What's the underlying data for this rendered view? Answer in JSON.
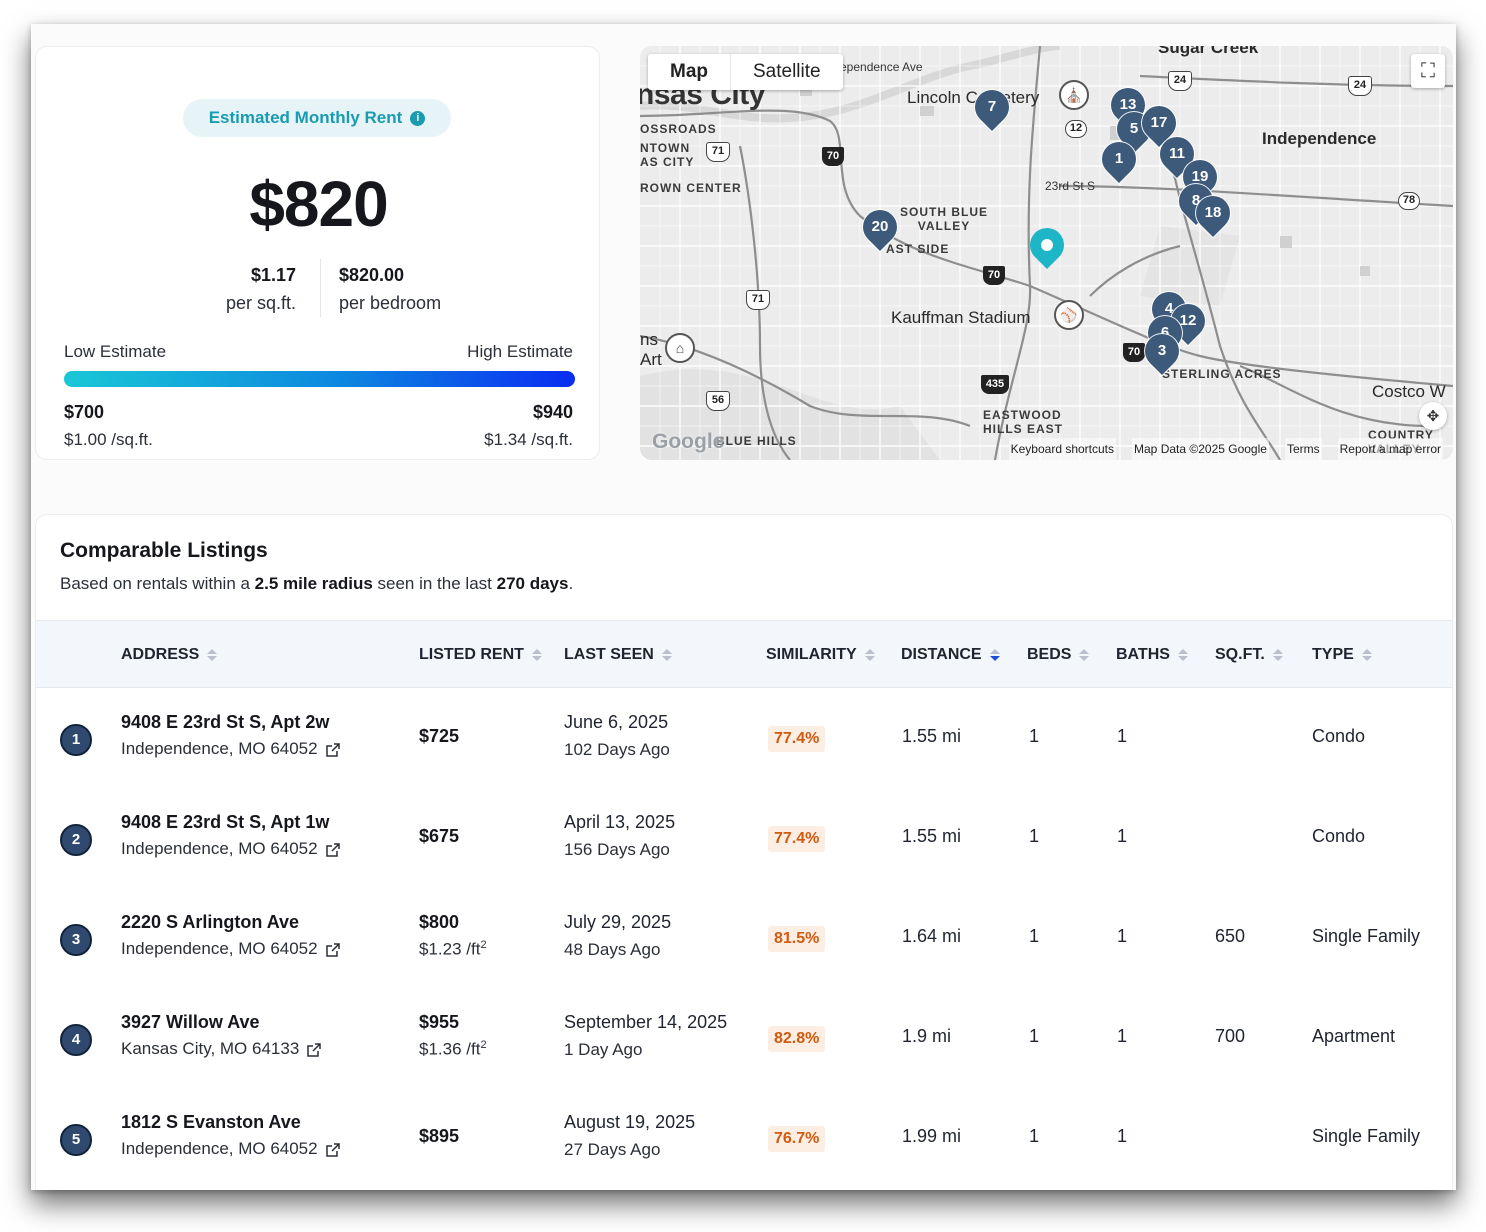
{
  "estimate": {
    "badge_label": "Estimated Monthly Rent",
    "info_glyph": "i",
    "value": "$820",
    "per_sqft_value": "$1.17",
    "per_sqft_label": "per sq.ft.",
    "per_bedroom_value": "$820.00",
    "per_bedroom_label": "per bedroom",
    "low_label": "Low Estimate",
    "high_label": "High Estimate",
    "low_value": "$700",
    "low_sqft": "$1.00 /sq.ft.",
    "high_value": "$940",
    "high_sqft": "$1.34 /sq.ft.",
    "bar_colors": [
      "#19c7d6",
      "#0d86e0",
      "#0a2cf2"
    ]
  },
  "map": {
    "tab_map": "Map",
    "tab_satellite": "Satellite",
    "fullscreen_icon": "fullscreen-icon",
    "labels": {
      "city": "nsas City",
      "sugar_creek": "Sugar Creek",
      "independence_ave": "ependence Ave",
      "lincoln_cemetery": "Lincoln Cemetery",
      "independence": "Independence",
      "crossroads": "OSSROADS",
      "downtown": "NTOWN\nAS CITY",
      "crown_center": "ROWN CENTER",
      "south_blue_valley": "SOUTH BLUE\nVALLEY",
      "east_side": "AST SIDE",
      "street_23rd": "23rd St S",
      "kauffman": "Kauffman Stadium",
      "sterling_acres": "STERLING ACRES",
      "costco": "Costco W",
      "eastwood": "EASTWOOD\nHILLS EAST",
      "blue_hills": "BLUE HILLS",
      "country": "COUNTRY\nVALLEY",
      "ns_art": "ns\nArt"
    },
    "route_shields": [
      "24",
      "24",
      "71",
      "71",
      "56",
      "78",
      "70",
      "70",
      "70",
      "435"
    ],
    "route_circle": "12",
    "pins": [
      "7",
      "13",
      "5",
      "17",
      "1",
      "11",
      "19",
      "8",
      "18",
      "20",
      "4",
      "12",
      "6",
      "3"
    ],
    "footer": {
      "shortcuts": "Keyboard shortcuts",
      "map_data": "Map Data ©2025 Google",
      "terms": "Terms",
      "report": "Report a map error"
    },
    "google_logo": "Google"
  },
  "comparables": {
    "title": "Comparable Listings",
    "subtitle_prefix": "Based on rentals within a ",
    "radius": "2.5 mile radius",
    "subtitle_mid": " seen in the last ",
    "days": "270 days",
    "subtitle_suffix": ".",
    "columns": {
      "address": "ADDRESS",
      "listed_rent": "LISTED RENT",
      "last_seen": "LAST SEEN",
      "similarity": "SIMILARITY",
      "distance": "DISTANCE",
      "beds": "BEDS",
      "baths": "BATHS",
      "sqft": "SQ.FT.",
      "type": "TYPE"
    },
    "sorted_by": "distance",
    "rows": [
      {
        "num": "1",
        "address": "9408 E 23rd St S, Apt 2w",
        "city": "Independence, MO 64052",
        "rent": "$725",
        "rent_sqft": "",
        "date": "June 6, 2025",
        "ago": "102 Days Ago",
        "similarity": "77.4%",
        "distance": "1.55 mi",
        "beds": "1",
        "baths": "1",
        "sqft": "",
        "type": "Condo"
      },
      {
        "num": "2",
        "address": "9408 E 23rd St S, Apt 1w",
        "city": "Independence, MO 64052",
        "rent": "$675",
        "rent_sqft": "",
        "date": "April 13, 2025",
        "ago": "156 Days Ago",
        "similarity": "77.4%",
        "distance": "1.55 mi",
        "beds": "1",
        "baths": "1",
        "sqft": "",
        "type": "Condo"
      },
      {
        "num": "3",
        "address": "2220 S Arlington Ave",
        "city": "Independence, MO 64052",
        "rent": "$800",
        "rent_sqft": "$1.23 /ft",
        "date": "July 29, 2025",
        "ago": "48 Days Ago",
        "similarity": "81.5%",
        "distance": "1.64 mi",
        "beds": "1",
        "baths": "1",
        "sqft": "650",
        "type": "Single Family"
      },
      {
        "num": "4",
        "address": "3927 Willow Ave",
        "city": "Kansas City, MO 64133",
        "rent": "$955",
        "rent_sqft": "$1.36 /ft",
        "date": "September 14, 2025",
        "ago": "1 Day Ago",
        "similarity": "82.8%",
        "distance": "1.9 mi",
        "beds": "1",
        "baths": "1",
        "sqft": "700",
        "type": "Apartment"
      },
      {
        "num": "5",
        "address": "1812 S Evanston Ave",
        "city": "Independence, MO 64052",
        "rent": "$895",
        "rent_sqft": "",
        "date": "August 19, 2025",
        "ago": "27 Days Ago",
        "similarity": "76.7%",
        "distance": "1.99 mi",
        "beds": "1",
        "baths": "1",
        "sqft": "",
        "type": "Single Family"
      }
    ],
    "sqft_superscript": "2"
  }
}
